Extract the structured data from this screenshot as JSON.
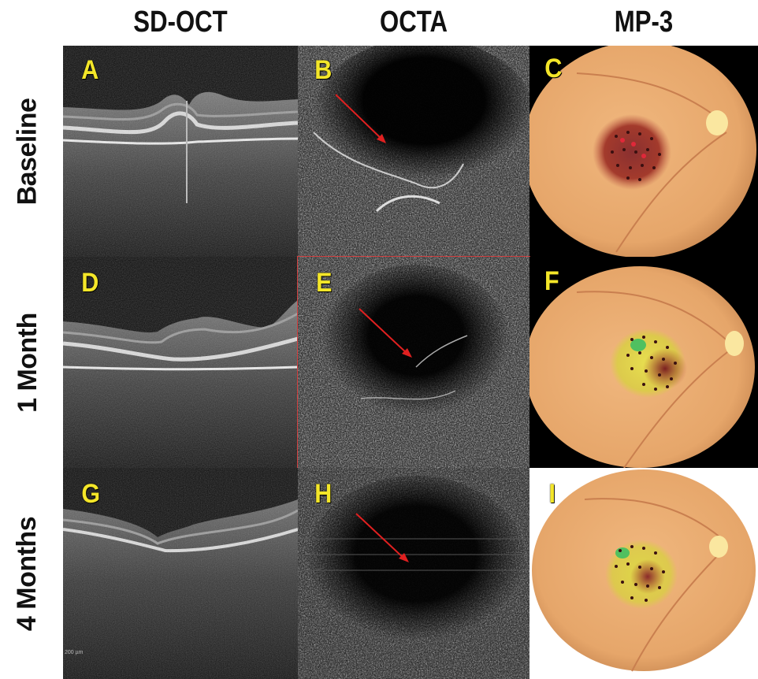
{
  "columns": [
    "SD-OCT",
    "OCTA",
    "MP-3"
  ],
  "rows": [
    "Baseline",
    "1 Month",
    "4 Months"
  ],
  "panels": [
    "A",
    "B",
    "C",
    "D",
    "E",
    "F",
    "G",
    "H",
    "I"
  ],
  "scale_bar": "200 µm",
  "colors": {
    "panel_label": "#f4e629",
    "arrow": "#e02020",
    "fundus": "#e9ae73"
  }
}
